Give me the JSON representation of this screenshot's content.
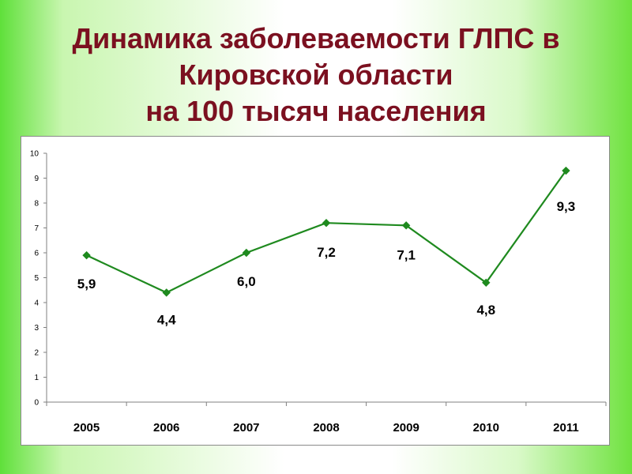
{
  "header": {
    "title_lines": [
      "Динамика заболеваемости ГЛПС в",
      "Кировской области",
      "на 100 тысяч населения"
    ]
  },
  "colors": {
    "title": "#7b1020",
    "series": "#1f8a1f",
    "background_green": "#5fe03a"
  },
  "chart_data": {
    "type": "line",
    "categories": [
      "2005",
      "2006",
      "2007",
      "2008",
      "2009",
      "2010",
      "2011"
    ],
    "series": [
      {
        "values": [
          5.9,
          4.4,
          6.0,
          7.2,
          7.1,
          4.8,
          9.3
        ]
      }
    ],
    "data_labels": [
      "5,9",
      "4,4",
      "6,0",
      "7,2",
      "7,1",
      "4,8",
      "9,3"
    ],
    "y_ticks": [
      "0",
      "1",
      "2",
      "3",
      "4",
      "5",
      "6",
      "7",
      "8",
      "9",
      "10"
    ],
    "ylim": [
      0,
      10
    ],
    "grid": false,
    "legend": "none",
    "marker": "diamond"
  }
}
